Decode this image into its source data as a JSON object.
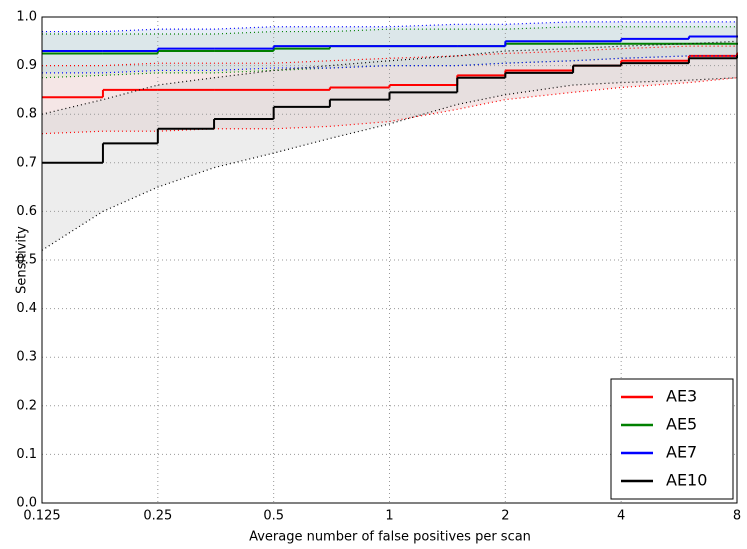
{
  "chart_data": {
    "type": "step",
    "x_label": "Average number of false positives per scan",
    "y_label": "Sensitivity",
    "x_scale": "log2",
    "grid": true,
    "legend_position": "lower right",
    "xlim": [
      0.125,
      8
    ],
    "ylim": [
      0,
      1
    ],
    "xticks": [
      0.125,
      0.25,
      0.5,
      1,
      2,
      4,
      8
    ],
    "yticks": [
      {
        "value": 0,
        "label": "0.0"
      },
      0.1,
      0.2,
      0.3,
      0.4,
      0.5,
      0.6,
      0.7,
      0.8,
      0.9,
      {
        "value": 1,
        "label": "1.0"
      }
    ],
    "x": [
      0.125,
      0.18,
      0.25,
      0.35,
      0.5,
      0.7,
      1,
      1.5,
      2,
      3,
      4,
      6,
      8
    ],
    "series": [
      {
        "name": "AE3",
        "color": "#ff0000",
        "band_color": "#e8c8c8",
        "values": [
          0.835,
          0.85,
          0.85,
          0.85,
          0.85,
          0.855,
          0.86,
          0.88,
          0.89,
          0.9,
          0.91,
          0.92,
          0.925
        ],
        "lower": [
          0.76,
          0.765,
          0.765,
          0.77,
          0.77,
          0.775,
          0.785,
          0.81,
          0.83,
          0.845,
          0.855,
          0.865,
          0.875
        ],
        "upper": [
          0.9,
          0.9,
          0.905,
          0.905,
          0.905,
          0.91,
          0.915,
          0.92,
          0.925,
          0.93,
          0.935,
          0.94,
          0.94
        ]
      },
      {
        "name": "AE5",
        "color": "#008000",
        "band_color": "#d8e8c8",
        "values": [
          0.925,
          0.925,
          0.93,
          0.93,
          0.935,
          0.94,
          0.94,
          0.94,
          0.945,
          0.945,
          0.945,
          0.945,
          0.945
        ],
        "lower": [
          0.875,
          0.88,
          0.885,
          0.885,
          0.89,
          0.895,
          0.9,
          0.9,
          0.905,
          0.91,
          0.915,
          0.92,
          0.92
        ],
        "upper": [
          0.965,
          0.965,
          0.965,
          0.965,
          0.97,
          0.97,
          0.975,
          0.975,
          0.975,
          0.98,
          0.98,
          0.98,
          0.98
        ]
      },
      {
        "name": "AE7",
        "color": "#0000ff",
        "band_color": "#c8d8f0",
        "values": [
          0.93,
          0.93,
          0.935,
          0.935,
          0.94,
          0.94,
          0.94,
          0.94,
          0.95,
          0.95,
          0.955,
          0.96,
          0.96
        ],
        "lower": [
          0.885,
          0.885,
          0.89,
          0.89,
          0.895,
          0.895,
          0.9,
          0.9,
          0.905,
          0.91,
          0.915,
          0.92,
          0.92
        ],
        "upper": [
          0.97,
          0.97,
          0.975,
          0.975,
          0.98,
          0.98,
          0.98,
          0.985,
          0.985,
          0.99,
          0.99,
          0.99,
          0.99
        ]
      },
      {
        "name": "AE10",
        "color": "#000000",
        "band_color": "#d8d8d8",
        "values": [
          0.7,
          0.74,
          0.77,
          0.79,
          0.815,
          0.83,
          0.845,
          0.875,
          0.885,
          0.9,
          0.905,
          0.915,
          0.92
        ],
        "lower": [
          0.52,
          0.6,
          0.65,
          0.69,
          0.72,
          0.75,
          0.78,
          0.82,
          0.84,
          0.86,
          0.865,
          0.87,
          0.875
        ],
        "upper": [
          0.8,
          0.83,
          0.86,
          0.875,
          0.89,
          0.9,
          0.91,
          0.92,
          0.93,
          0.935,
          0.94,
          0.945,
          0.95
        ]
      }
    ]
  }
}
